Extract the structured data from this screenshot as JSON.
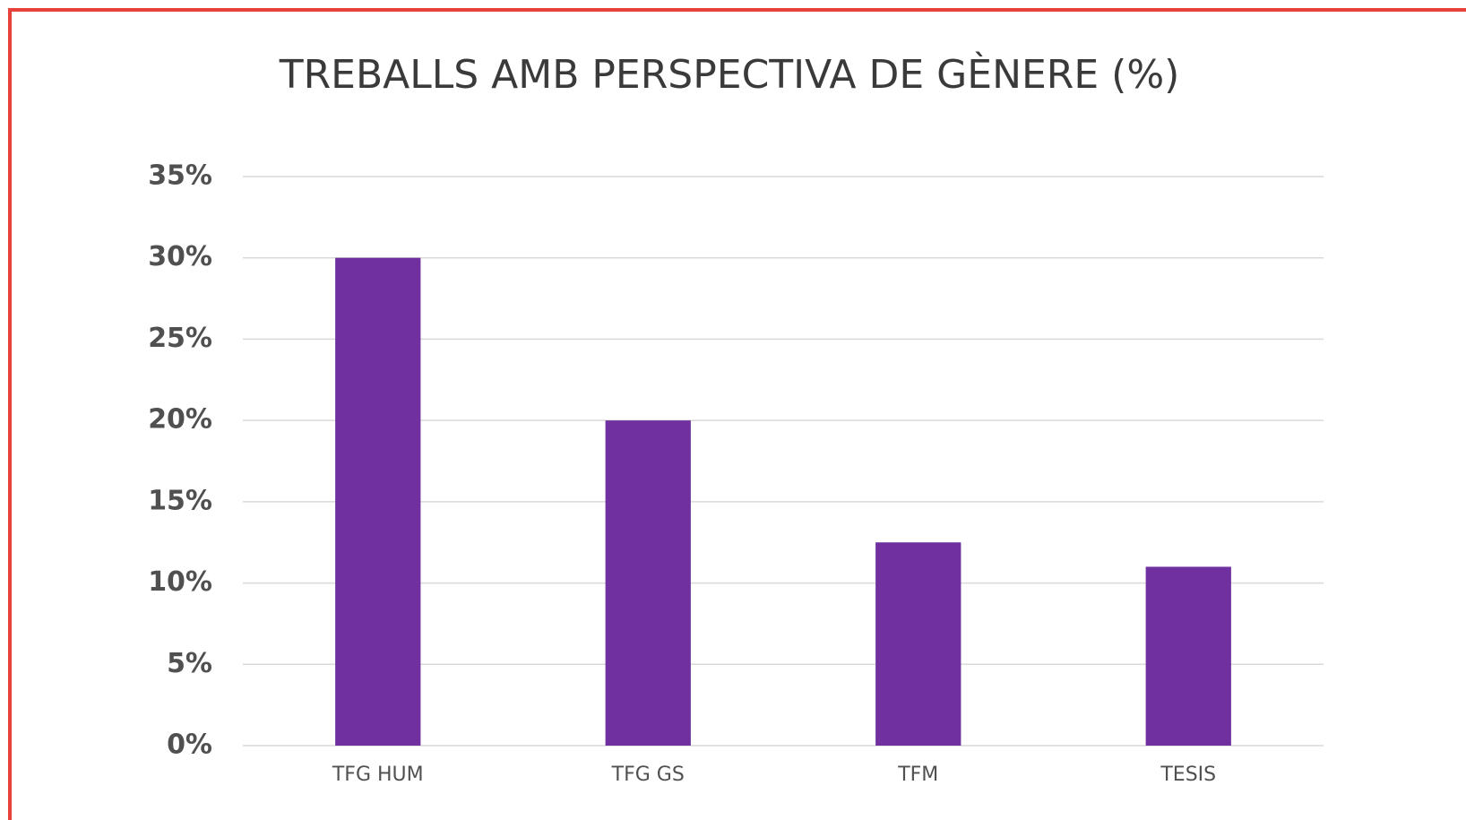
{
  "chart_data": {
    "type": "bar",
    "title": "TREBALLS AMB PERSPECTIVA DE GÈNERE (%)",
    "categories": [
      "TFG HUM",
      "TFG GS",
      "TFM",
      "TESIS"
    ],
    "values": [
      30,
      20,
      12.5,
      11
    ],
    "color": "#7030a0",
    "ylim": [
      0,
      35
    ],
    "yticks": [
      {
        "value": 0,
        "label": "0%"
      },
      {
        "value": 5,
        "label": "5%"
      },
      {
        "value": 10,
        "label": "10%"
      },
      {
        "value": 15,
        "label": "15%"
      },
      {
        "value": 20,
        "label": "20%"
      },
      {
        "value": 25,
        "label": "25%"
      },
      {
        "value": 30,
        "label": "30%"
      },
      {
        "value": 35,
        "label": "35%"
      }
    ],
    "grid": true
  }
}
